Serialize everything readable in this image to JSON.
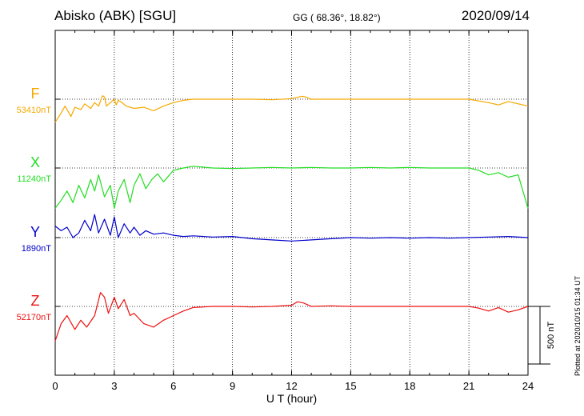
{
  "header": {
    "station": "Abisko (ABK)  [SGU]",
    "coords": "GG ( 68.36°,  18.82°)",
    "date": "2020/09/14"
  },
  "plotted_note": "Plotted at 2020/10/15 01:34 UT",
  "chart_data": {
    "type": "line",
    "xlabel": "U T (hour)",
    "xticks": [
      0,
      3,
      6,
      9,
      12,
      15,
      18,
      21,
      24
    ],
    "xlim": [
      0,
      24
    ],
    "scale_bar": {
      "label": "500 nT",
      "value": 500
    },
    "colors": {
      "F": "#f5a800",
      "X": "#22dd22",
      "Y": "#0000cc",
      "Z": "#ee1111"
    },
    "series": [
      {
        "name": "F",
        "baseline_label": "53410nT",
        "baseline": 53410,
        "x": [
          0,
          0.3,
          0.5,
          0.8,
          1.0,
          1.3,
          1.5,
          1.8,
          2.0,
          2.2,
          2.4,
          2.5,
          2.6,
          2.8,
          3.0,
          3.1,
          3.2,
          3.4,
          3.6,
          4.0,
          4.5,
          5.0,
          5.5,
          6.0,
          6.5,
          7.0,
          8,
          9,
          10,
          11,
          12,
          12.5,
          12.7,
          13,
          14,
          15,
          16,
          17,
          18,
          19,
          20,
          21,
          21.5,
          22,
          22.5,
          23,
          23.5,
          24
        ],
        "values": [
          -200,
          -120,
          -60,
          -150,
          -70,
          -90,
          -40,
          -80,
          -30,
          -60,
          30,
          20,
          -60,
          -30,
          0,
          -50,
          -10,
          -30,
          -60,
          -80,
          -70,
          -100,
          -60,
          -30,
          -10,
          0,
          0,
          0,
          0,
          -5,
          5,
          25,
          20,
          0,
          0,
          0,
          0,
          0,
          0,
          0,
          0,
          0,
          -15,
          -30,
          -50,
          -20,
          -40,
          -60
        ]
      },
      {
        "name": "X",
        "baseline_label": "11240nT",
        "baseline": 11240,
        "x": [
          0,
          0.3,
          0.6,
          0.9,
          1.2,
          1.5,
          1.8,
          2.0,
          2.2,
          2.5,
          2.8,
          3.0,
          3.2,
          3.5,
          3.8,
          4.0,
          4.3,
          4.6,
          4.9,
          5.2,
          5.5,
          6.0,
          6.5,
          7.0,
          8,
          9,
          10,
          11,
          12,
          13,
          14,
          15,
          16,
          17,
          18,
          19,
          20,
          21,
          21.5,
          22,
          22.5,
          23,
          23.5,
          24
        ],
        "values": [
          -350,
          -280,
          -200,
          -300,
          -150,
          -260,
          -100,
          -200,
          -60,
          -250,
          -150,
          -350,
          -200,
          -100,
          -300,
          -150,
          -50,
          -180,
          -100,
          -50,
          -120,
          -20,
          0,
          15,
          0,
          -5,
          0,
          5,
          0,
          5,
          0,
          0,
          5,
          0,
          5,
          0,
          0,
          0,
          -20,
          -60,
          -40,
          -80,
          -60,
          -350
        ]
      },
      {
        "name": "Y",
        "baseline_label": "1890nT",
        "baseline": 1890,
        "x": [
          0,
          0.3,
          0.6,
          0.9,
          1.2,
          1.5,
          1.8,
          2.0,
          2.2,
          2.5,
          2.8,
          3.0,
          3.2,
          3.5,
          3.8,
          4.0,
          4.3,
          4.6,
          5.0,
          5.5,
          6.0,
          6.5,
          7.0,
          8,
          9,
          10,
          11,
          12,
          13,
          14,
          15,
          16,
          17,
          18,
          19,
          20,
          21,
          22,
          23,
          24
        ],
        "values": [
          100,
          60,
          90,
          0,
          40,
          150,
          60,
          200,
          40,
          160,
          20,
          180,
          0,
          120,
          40,
          90,
          20,
          60,
          30,
          40,
          20,
          10,
          15,
          5,
          10,
          -10,
          -20,
          -30,
          -20,
          -10,
          0,
          -5,
          0,
          -5,
          0,
          -5,
          0,
          5,
          10,
          0
        ]
      },
      {
        "name": "Z",
        "baseline_label": "52170nT",
        "baseline": 52170,
        "x": [
          0,
          0.3,
          0.6,
          1.0,
          1.3,
          1.6,
          2.0,
          2.3,
          2.5,
          2.7,
          3.0,
          3.2,
          3.5,
          3.8,
          4.0,
          4.5,
          5.0,
          5.5,
          6.0,
          6.5,
          7.0,
          8,
          9,
          10,
          11,
          12,
          12.3,
          12.6,
          13,
          14,
          15,
          16,
          17,
          18,
          19,
          20,
          21,
          21.5,
          22,
          22.5,
          23,
          23.5,
          24
        ],
        "values": [
          -300,
          -150,
          -80,
          -200,
          -120,
          -180,
          -80,
          120,
          80,
          -60,
          80,
          -20,
          60,
          -80,
          -60,
          -150,
          -180,
          -120,
          -80,
          -40,
          -10,
          0,
          0,
          -5,
          0,
          10,
          40,
          30,
          0,
          5,
          0,
          0,
          0,
          0,
          0,
          0,
          0,
          -15,
          -40,
          -10,
          -50,
          -30,
          0
        ]
      }
    ]
  }
}
